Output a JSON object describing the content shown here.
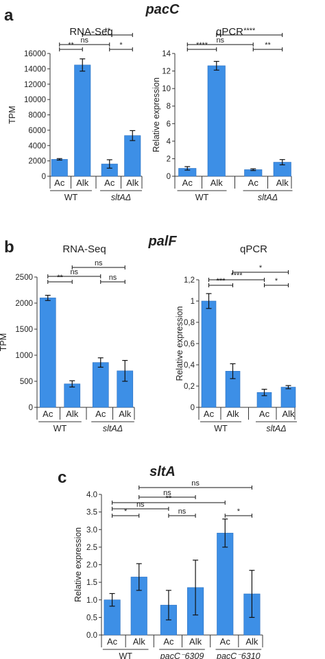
{
  "figure": {
    "panel_a": {
      "letter": "a",
      "gene": "pacC",
      "charts": [
        {
          "type": "bar",
          "title": "RNA-Seq",
          "ylabel": "TPM",
          "ylim": [
            0,
            16000
          ],
          "yticks": [
            "0",
            "2000",
            "4000",
            "6000",
            "8000",
            "10000",
            "12000",
            "14000",
            "16000"
          ],
          "ytick_values": [
            0,
            2000,
            4000,
            6000,
            8000,
            10000,
            12000,
            14000,
            16000
          ],
          "categories": [
            "Ac",
            "Alk",
            "Ac",
            "Alk"
          ],
          "values": [
            2200,
            14500,
            1600,
            5300
          ],
          "errors": [
            100,
            800,
            550,
            650
          ],
          "groups": [
            {
              "label": "WT",
              "italic": false,
              "bars": [
                0,
                1
              ]
            },
            {
              "label": "sltAΔ",
              "italic": true,
              "bars": [
                2,
                3
              ]
            }
          ],
          "significance": [
            {
              "from": 0,
              "to": 1,
              "label": "**"
            },
            {
              "from": 0,
              "to": 2,
              "label": "ns"
            },
            {
              "from": 1,
              "to": 3,
              "label": "**"
            },
            {
              "from": 2,
              "to": 3,
              "label": "*"
            }
          ]
        },
        {
          "type": "bar",
          "title": "qPCR",
          "ylabel": "Relative expression",
          "ylim": [
            0,
            14
          ],
          "yticks": [
            "0",
            "2",
            "4",
            "6",
            "8",
            "10",
            "12",
            "14"
          ],
          "ytick_values": [
            0,
            2,
            4,
            6,
            8,
            10,
            12,
            14
          ],
          "categories": [
            "Ac",
            "Alk",
            "Ac",
            "Alk"
          ],
          "values": [
            0.9,
            12.6,
            0.75,
            1.6
          ],
          "errors": [
            0.2,
            0.5,
            0.1,
            0.3
          ],
          "groups": [
            {
              "label": "WT",
              "italic": false,
              "bars": [
                0,
                1
              ]
            },
            {
              "label": "sltAΔ",
              "italic": true,
              "bars": [
                2,
                3
              ]
            }
          ],
          "significance": [
            {
              "from": 0,
              "to": 1,
              "label": "****"
            },
            {
              "from": 0,
              "to": 2,
              "label": "ns"
            },
            {
              "from": 1,
              "to": 3,
              "label": "****"
            },
            {
              "from": 2,
              "to": 3,
              "label": "**"
            }
          ]
        }
      ]
    },
    "panel_b": {
      "letter": "b",
      "gene": "palF",
      "charts": [
        {
          "type": "bar",
          "title": "RNA-Seq",
          "ylabel": "TPM",
          "ylim": [
            0,
            2500
          ],
          "yticks": [
            "0",
            "500",
            "1000",
            "1500",
            "2000",
            "2500"
          ],
          "ytick_values": [
            0,
            500,
            1000,
            1500,
            2000,
            2500
          ],
          "categories": [
            "Ac",
            "Alk",
            "Ac",
            "Alk"
          ],
          "values": [
            2100,
            450,
            860,
            700
          ],
          "errors": [
            50,
            60,
            90,
            200
          ],
          "groups": [
            {
              "label": "WT",
              "italic": false,
              "bars": [
                0,
                1
              ]
            },
            {
              "label": "sltAΔ",
              "italic": true,
              "bars": [
                2,
                3
              ]
            }
          ],
          "significance": [
            {
              "from": 0,
              "to": 1,
              "label": "**"
            },
            {
              "from": 0,
              "to": 2,
              "label": "ns"
            },
            {
              "from": 1,
              "to": 3,
              "label": "ns"
            },
            {
              "from": 2,
              "to": 3,
              "label": "ns"
            }
          ]
        },
        {
          "type": "bar",
          "title": "qPCR",
          "ylabel": "Relative expression",
          "ylim": [
            0,
            1.2
          ],
          "yticks": [
            "0",
            "0,2",
            "0,4",
            "0,6",
            "0,8",
            "1",
            "1,2"
          ],
          "ytick_values": [
            0,
            0.2,
            0.4,
            0.6,
            0.8,
            1.0,
            1.2
          ],
          "categories": [
            "Ac",
            "Alk",
            "Ac",
            "Alk"
          ],
          "values": [
            1.0,
            0.34,
            0.14,
            0.19
          ],
          "errors": [
            0.07,
            0.07,
            0.03,
            0.015
          ],
          "groups": [
            {
              "label": "WT",
              "italic": false,
              "bars": [
                0,
                1
              ]
            },
            {
              "label": "sltAΔ",
              "italic": true,
              "bars": [
                2,
                3
              ]
            }
          ],
          "significance": [
            {
              "from": 0,
              "to": 1,
              "label": "***"
            },
            {
              "from": 0,
              "to": 2,
              "label": "****"
            },
            {
              "from": 1,
              "to": 3,
              "label": "*"
            },
            {
              "from": 2,
              "to": 3,
              "label": "*"
            }
          ]
        }
      ]
    },
    "panel_c": {
      "letter": "c",
      "gene": "sltA",
      "charts": [
        {
          "type": "bar",
          "title": "",
          "ylabel": "Relative expression",
          "ylim": [
            0,
            4.0
          ],
          "yticks": [
            "0.0",
            "0.5",
            "1.0",
            "1.5",
            "2.0",
            "2.5",
            "3.0",
            "3.5",
            "4.0"
          ],
          "ytick_values": [
            0,
            0.5,
            1.0,
            1.5,
            2.0,
            2.5,
            3.0,
            3.5,
            4.0
          ],
          "categories": [
            "Ac",
            "Alk",
            "Ac",
            "Alk",
            "Ac",
            "Alk"
          ],
          "values": [
            1.0,
            1.65,
            0.85,
            1.35,
            2.9,
            1.17
          ],
          "errors": [
            0.18,
            0.38,
            0.42,
            0.78,
            0.4,
            0.67
          ],
          "groups": [
            {
              "label": "WT",
              "italic": false,
              "bars": [
                0,
                1
              ]
            },
            {
              "label": "pacC⁻6309",
              "italic": true,
              "bars": [
                2,
                3
              ]
            },
            {
              "label": "pacC⁻6310",
              "italic": true,
              "bars": [
                4,
                5
              ]
            }
          ],
          "significance": [
            {
              "from": 0,
              "to": 1,
              "label": "*"
            },
            {
              "from": 0,
              "to": 2,
              "label": "ns"
            },
            {
              "from": 0,
              "to": 4,
              "label": "**"
            },
            {
              "from": 1,
              "to": 3,
              "label": "ns"
            },
            {
              "from": 1,
              "to": 5,
              "label": "ns"
            },
            {
              "from": 2,
              "to": 3,
              "label": "ns"
            },
            {
              "from": 4,
              "to": 5,
              "label": "*"
            }
          ]
        }
      ]
    }
  },
  "chart_data": [
    {
      "type": "bar",
      "title": "RNA-Seq",
      "ylabel": "TPM",
      "categories": [
        "WT Ac",
        "WT Alk",
        "sltAΔ Ac",
        "sltAΔ Alk"
      ],
      "values": [
        2200,
        14500,
        1600,
        5300
      ],
      "ylim": [
        0,
        16000
      ]
    },
    {
      "type": "bar",
      "title": "qPCR",
      "ylabel": "Relative expression",
      "categories": [
        "WT Ac",
        "WT Alk",
        "sltAΔ Ac",
        "sltAΔ Alk"
      ],
      "values": [
        0.9,
        12.6,
        0.75,
        1.6
      ],
      "ylim": [
        0,
        14
      ]
    },
    {
      "type": "bar",
      "title": "RNA-Seq",
      "ylabel": "TPM",
      "categories": [
        "WT Ac",
        "WT Alk",
        "sltAΔ Ac",
        "sltAΔ Alk"
      ],
      "values": [
        2100,
        450,
        860,
        700
      ],
      "ylim": [
        0,
        2500
      ]
    },
    {
      "type": "bar",
      "title": "qPCR",
      "ylabel": "Relative expression",
      "categories": [
        "WT Ac",
        "WT Alk",
        "sltAΔ Ac",
        "sltAΔ Alk"
      ],
      "values": [
        1.0,
        0.34,
        0.14,
        0.19
      ],
      "ylim": [
        0,
        1.2
      ]
    },
    {
      "type": "bar",
      "title": "",
      "ylabel": "Relative expression",
      "categories": [
        "WT Ac",
        "WT Alk",
        "pacC⁻6309 Ac",
        "pacC⁻6309 Alk",
        "pacC⁻6310 Ac",
        "pacC⁻6310 Alk"
      ],
      "values": [
        1.0,
        1.65,
        0.85,
        1.35,
        2.9,
        1.17
      ],
      "ylim": [
        0,
        4.0
      ]
    }
  ],
  "colors": {
    "bar": "#3d8fe6",
    "bar_edge": "#2a6fc0",
    "axis": "#333333",
    "text": "#222222"
  }
}
